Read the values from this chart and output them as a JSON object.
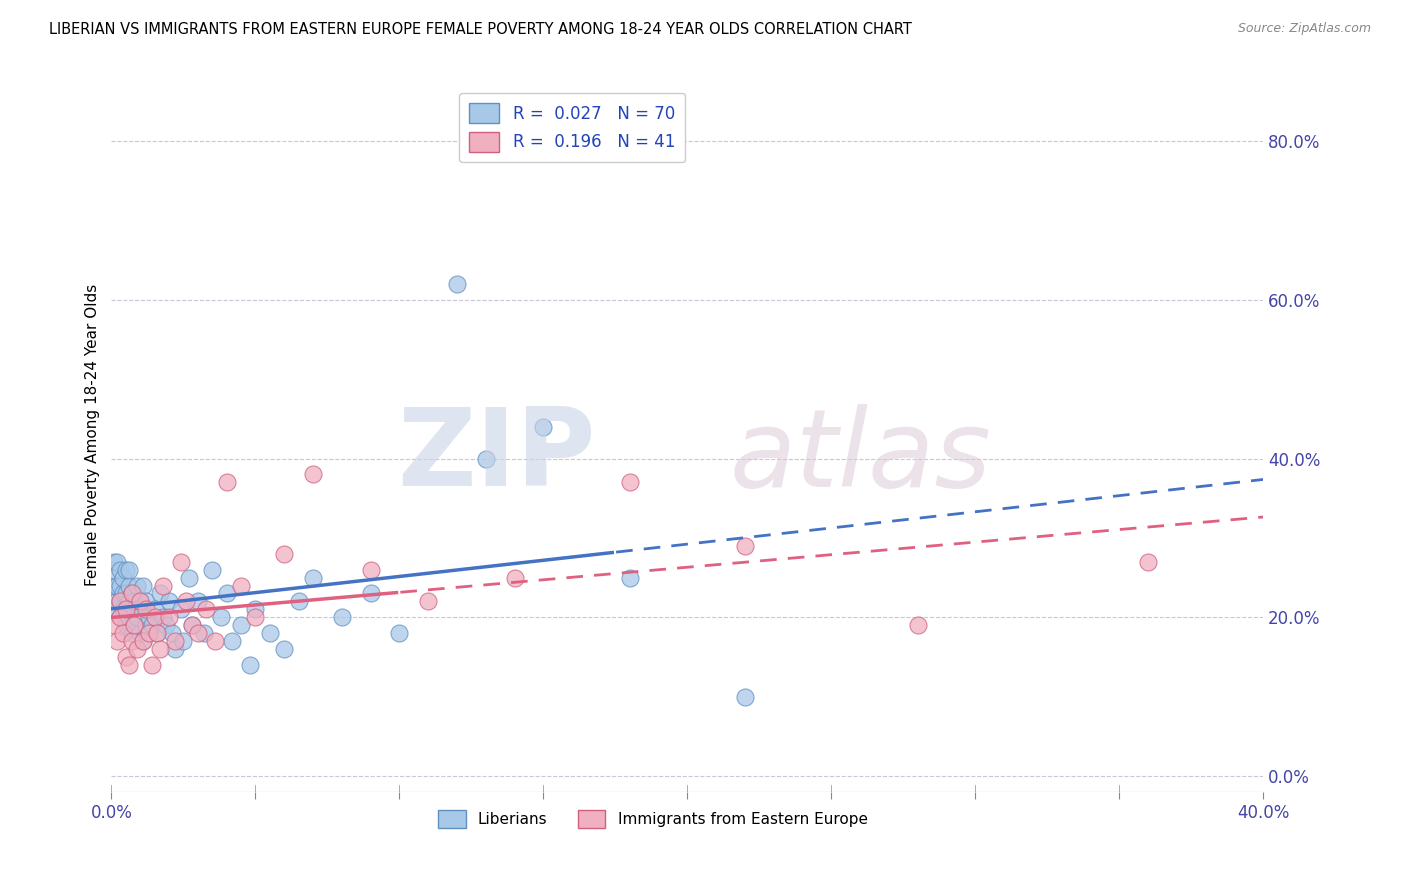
{
  "title": "LIBERIAN VS IMMIGRANTS FROM EASTERN EUROPE FEMALE POVERTY AMONG 18-24 YEAR OLDS CORRELATION CHART",
  "source": "Source: ZipAtlas.com",
  "ylabel": "Female Poverty Among 18-24 Year Olds",
  "xlim": [
    0.0,
    0.4
  ],
  "ylim": [
    -0.02,
    0.88
  ],
  "xticks": [
    0.0,
    0.05,
    0.1,
    0.15,
    0.2,
    0.25,
    0.3,
    0.35,
    0.4
  ],
  "xticklabels_show": [
    "0.0%",
    "",
    "",
    "",
    "",
    "",
    "",
    "",
    "40.0%"
  ],
  "yticks_right": [
    0.0,
    0.2,
    0.4,
    0.6,
    0.8
  ],
  "yticklabels_right": [
    "0.0%",
    "20.0%",
    "40.0%",
    "60.0%",
    "80.0%"
  ],
  "legend_R1": "0.027",
  "legend_N1": "70",
  "legend_R2": "0.196",
  "legend_N2": "41",
  "liberian_color": "#a8c8e8",
  "liberian_edge": "#6090c0",
  "eastern_europe_color": "#f0b0c0",
  "eastern_edge": "#d06080",
  "line_color_blue": "#4472c4",
  "line_color_pink": "#e06080",
  "grid_color": "#c8c8d8",
  "background_color": "#ffffff",
  "liberian_x": [
    0.001,
    0.001,
    0.001,
    0.002,
    0.002,
    0.002,
    0.002,
    0.003,
    0.003,
    0.003,
    0.003,
    0.004,
    0.004,
    0.004,
    0.005,
    0.005,
    0.005,
    0.005,
    0.006,
    0.006,
    0.006,
    0.006,
    0.007,
    0.007,
    0.007,
    0.008,
    0.008,
    0.009,
    0.009,
    0.01,
    0.01,
    0.011,
    0.011,
    0.012,
    0.012,
    0.013,
    0.014,
    0.015,
    0.016,
    0.017,
    0.018,
    0.019,
    0.02,
    0.021,
    0.022,
    0.024,
    0.025,
    0.027,
    0.028,
    0.03,
    0.032,
    0.035,
    0.038,
    0.04,
    0.042,
    0.045,
    0.048,
    0.05,
    0.055,
    0.06,
    0.065,
    0.07,
    0.08,
    0.09,
    0.1,
    0.12,
    0.13,
    0.15,
    0.18,
    0.22
  ],
  "liberian_y": [
    0.24,
    0.26,
    0.27,
    0.21,
    0.22,
    0.24,
    0.27,
    0.2,
    0.22,
    0.24,
    0.26,
    0.21,
    0.23,
    0.25,
    0.19,
    0.21,
    0.23,
    0.26,
    0.2,
    0.22,
    0.24,
    0.26,
    0.18,
    0.21,
    0.23,
    0.19,
    0.22,
    0.2,
    0.24,
    0.18,
    0.22,
    0.17,
    0.24,
    0.19,
    0.22,
    0.2,
    0.19,
    0.21,
    0.18,
    0.23,
    0.2,
    0.19,
    0.22,
    0.18,
    0.16,
    0.21,
    0.17,
    0.25,
    0.19,
    0.22,
    0.18,
    0.26,
    0.2,
    0.23,
    0.17,
    0.19,
    0.14,
    0.21,
    0.18,
    0.16,
    0.22,
    0.25,
    0.2,
    0.23,
    0.18,
    0.62,
    0.4,
    0.44,
    0.25,
    0.1
  ],
  "eastern_x": [
    0.001,
    0.002,
    0.003,
    0.003,
    0.004,
    0.005,
    0.005,
    0.006,
    0.007,
    0.007,
    0.008,
    0.009,
    0.01,
    0.011,
    0.012,
    0.013,
    0.014,
    0.015,
    0.016,
    0.017,
    0.018,
    0.02,
    0.022,
    0.024,
    0.026,
    0.028,
    0.03,
    0.033,
    0.036,
    0.04,
    0.045,
    0.05,
    0.06,
    0.07,
    0.09,
    0.11,
    0.14,
    0.18,
    0.22,
    0.28,
    0.36
  ],
  "eastern_y": [
    0.19,
    0.17,
    0.2,
    0.22,
    0.18,
    0.15,
    0.21,
    0.14,
    0.17,
    0.23,
    0.19,
    0.16,
    0.22,
    0.17,
    0.21,
    0.18,
    0.14,
    0.2,
    0.18,
    0.16,
    0.24,
    0.2,
    0.17,
    0.27,
    0.22,
    0.19,
    0.18,
    0.21,
    0.17,
    0.37,
    0.24,
    0.2,
    0.28,
    0.38,
    0.26,
    0.22,
    0.25,
    0.37,
    0.29,
    0.19,
    0.27
  ]
}
